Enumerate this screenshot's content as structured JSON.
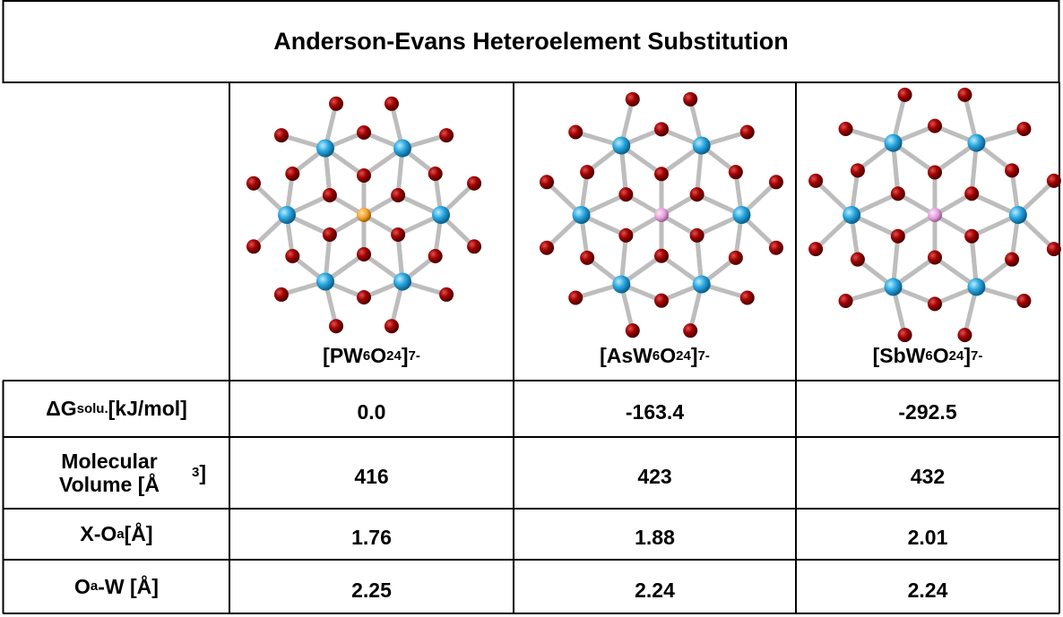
{
  "title": "Anderson-Evans Heteroelement Substitution",
  "columns": [
    {
      "formula": [
        {
          "t": "[PW"
        },
        {
          "sub": "6"
        },
        {
          "t": "O"
        },
        {
          "sub": "24"
        },
        {
          "t": "]"
        },
        {
          "sup": "7-"
        }
      ]
    },
    {
      "formula": [
        {
          "t": "[AsW"
        },
        {
          "sub": "6"
        },
        {
          "t": "O"
        },
        {
          "sub": "24"
        },
        {
          "t": "]"
        },
        {
          "sup": "7-"
        }
      ]
    },
    {
      "formula": [
        {
          "t": "[SbW"
        },
        {
          "sub": "6"
        },
        {
          "t": "O"
        },
        {
          "sub": "24"
        },
        {
          "t": "]"
        },
        {
          "sup": "7-"
        }
      ]
    }
  ],
  "rows": [
    {
      "label": [
        {
          "t": "ΔG"
        },
        {
          "sub": "solu."
        },
        {
          "t": " [kJ/mol]"
        }
      ],
      "values": [
        "0.0",
        "-163.4",
        "-292.5"
      ]
    },
    {
      "label": [
        {
          "t": "Molecular Volume [Å"
        },
        {
          "sup": "3"
        },
        {
          "t": "]"
        }
      ],
      "values": [
        "416",
        "423",
        "432"
      ]
    },
    {
      "label": [
        {
          "t": "X-O"
        },
        {
          "sub": "a"
        },
        {
          "t": " [Å]"
        }
      ],
      "values": [
        "1.76",
        "1.88",
        "2.01"
      ]
    },
    {
      "label": [
        {
          "t": "O"
        },
        {
          "sub": "a"
        },
        {
          "t": "-W [Å]"
        }
      ],
      "values": [
        "2.25",
        "2.24",
        "2.24"
      ]
    }
  ]
}
